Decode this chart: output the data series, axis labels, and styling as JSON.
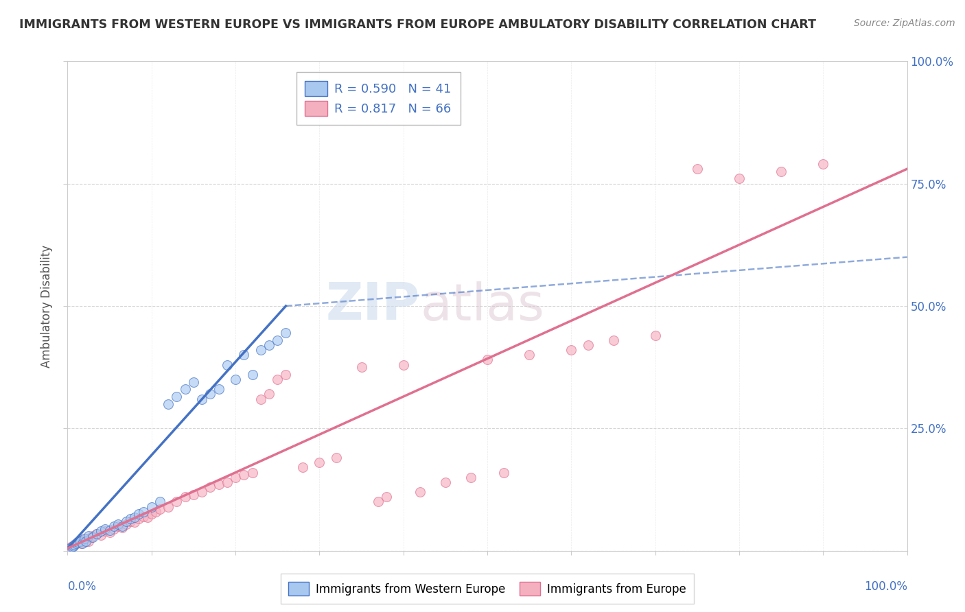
{
  "title": "IMMIGRANTS FROM WESTERN EUROPE VS IMMIGRANTS FROM EUROPE AMBULATORY DISABILITY CORRELATION CHART",
  "source": "Source: ZipAtlas.com",
  "ylabel": "Ambulatory Disability",
  "x_label_bottom_left": "0.0%",
  "x_label_bottom_right": "100.0%",
  "legend_blue_r": "0.590",
  "legend_blue_n": "41",
  "legend_pink_r": "0.817",
  "legend_pink_n": "66",
  "legend_blue_label": "Immigrants from Western Europe",
  "legend_pink_label": "Immigrants from Europe",
  "blue_scatter_color": "#A8C8F0",
  "pink_scatter_color": "#F5B0C0",
  "blue_line_color": "#4472C4",
  "pink_line_color": "#E07090",
  "blue_scatter": [
    [
      0.3,
      0.5
    ],
    [
      0.5,
      0.8
    ],
    [
      0.7,
      1.0
    ],
    [
      0.8,
      1.2
    ],
    [
      1.0,
      1.5
    ],
    [
      1.2,
      1.8
    ],
    [
      1.5,
      2.0
    ],
    [
      1.8,
      1.5
    ],
    [
      2.0,
      2.5
    ],
    [
      2.2,
      2.0
    ],
    [
      2.5,
      3.0
    ],
    [
      3.0,
      2.8
    ],
    [
      3.5,
      3.5
    ],
    [
      4.0,
      4.0
    ],
    [
      4.5,
      4.5
    ],
    [
      5.0,
      4.2
    ],
    [
      5.5,
      5.0
    ],
    [
      6.0,
      5.5
    ],
    [
      6.5,
      5.0
    ],
    [
      7.0,
      6.0
    ],
    [
      7.5,
      6.5
    ],
    [
      8.0,
      6.8
    ],
    [
      8.5,
      7.5
    ],
    [
      9.0,
      8.0
    ],
    [
      10.0,
      9.0
    ],
    [
      11.0,
      10.0
    ],
    [
      12.0,
      30.0
    ],
    [
      13.0,
      31.5
    ],
    [
      14.0,
      33.0
    ],
    [
      15.0,
      34.5
    ],
    [
      16.0,
      31.0
    ],
    [
      17.0,
      32.0
    ],
    [
      18.0,
      33.0
    ],
    [
      20.0,
      35.0
    ],
    [
      22.0,
      36.0
    ],
    [
      19.0,
      38.0
    ],
    [
      21.0,
      40.0
    ],
    [
      23.0,
      41.0
    ],
    [
      24.0,
      42.0
    ],
    [
      25.0,
      43.0
    ],
    [
      26.0,
      44.5
    ]
  ],
  "pink_scatter": [
    [
      0.2,
      0.4
    ],
    [
      0.4,
      0.8
    ],
    [
      0.6,
      1.0
    ],
    [
      0.8,
      1.2
    ],
    [
      1.0,
      1.5
    ],
    [
      1.2,
      1.8
    ],
    [
      1.4,
      2.0
    ],
    [
      1.6,
      1.5
    ],
    [
      1.8,
      2.2
    ],
    [
      2.0,
      1.8
    ],
    [
      2.2,
      2.5
    ],
    [
      2.5,
      2.0
    ],
    [
      2.8,
      2.8
    ],
    [
      3.0,
      3.0
    ],
    [
      3.5,
      3.5
    ],
    [
      4.0,
      3.2
    ],
    [
      4.5,
      4.0
    ],
    [
      5.0,
      3.8
    ],
    [
      5.5,
      4.5
    ],
    [
      6.0,
      5.0
    ],
    [
      6.5,
      4.8
    ],
    [
      7.0,
      5.5
    ],
    [
      7.5,
      6.0
    ],
    [
      8.0,
      5.8
    ],
    [
      8.5,
      6.5
    ],
    [
      9.0,
      7.0
    ],
    [
      9.5,
      6.8
    ],
    [
      10.0,
      7.5
    ],
    [
      10.5,
      8.0
    ],
    [
      11.0,
      8.5
    ],
    [
      12.0,
      9.0
    ],
    [
      13.0,
      10.0
    ],
    [
      14.0,
      11.0
    ],
    [
      15.0,
      11.5
    ],
    [
      16.0,
      12.0
    ],
    [
      17.0,
      13.0
    ],
    [
      18.0,
      13.5
    ],
    [
      19.0,
      14.0
    ],
    [
      20.0,
      15.0
    ],
    [
      21.0,
      15.5
    ],
    [
      22.0,
      16.0
    ],
    [
      23.0,
      31.0
    ],
    [
      24.0,
      32.0
    ],
    [
      25.0,
      35.0
    ],
    [
      26.0,
      36.0
    ],
    [
      28.0,
      17.0
    ],
    [
      30.0,
      18.0
    ],
    [
      32.0,
      19.0
    ],
    [
      35.0,
      37.5
    ],
    [
      37.0,
      10.0
    ],
    [
      38.0,
      11.0
    ],
    [
      40.0,
      38.0
    ],
    [
      42.0,
      12.0
    ],
    [
      45.0,
      14.0
    ],
    [
      48.0,
      15.0
    ],
    [
      50.0,
      39.0
    ],
    [
      52.0,
      16.0
    ],
    [
      55.0,
      40.0
    ],
    [
      60.0,
      41.0
    ],
    [
      62.0,
      42.0
    ],
    [
      65.0,
      43.0
    ],
    [
      70.0,
      44.0
    ],
    [
      75.0,
      78.0
    ],
    [
      80.0,
      76.0
    ],
    [
      85.0,
      77.5
    ],
    [
      90.0,
      79.0
    ]
  ],
  "blue_line_x0": 0.0,
  "blue_line_y0": 0.5,
  "blue_line_x1": 26.0,
  "blue_line_y1": 50.0,
  "blue_dash_x1": 100.0,
  "blue_dash_y1": 60.0,
  "pink_line_x0": 0.0,
  "pink_line_y0": 0.5,
  "pink_line_x1": 100.0,
  "pink_line_y1": 78.0,
  "background_color": "#FFFFFF",
  "grid_color": "#CCCCCC",
  "xlim": [
    0,
    100
  ],
  "ylim": [
    0,
    100
  ]
}
